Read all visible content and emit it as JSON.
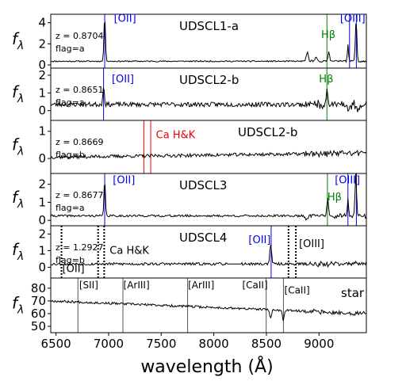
{
  "chart_data": {
    "type": "line",
    "xlabel": "wavelength (Å)",
    "ylabel": "fλ",
    "xlim": [
      6450,
      9450
    ],
    "x_ticks": [
      "6500",
      "7000",
      "7500",
      "8000",
      "8500",
      "9000"
    ],
    "panels": [
      {
        "id": "p1",
        "name": "UDSCL1-a",
        "z": "z = 0.8704",
        "flag": "flag=a",
        "ylim": [
          -0.3,
          4.8
        ],
        "yticks": [
          0,
          2,
          4
        ],
        "base": 0.35,
        "noise": 0.06,
        "seed": 11,
        "features": [
          [
            6963,
            4.3,
            10
          ],
          [
            8890,
            0.8,
            14
          ],
          [
            8970,
            0.5,
            12
          ],
          [
            9093,
            1.0,
            10
          ],
          [
            9275,
            1.6,
            8
          ],
          [
            9353,
            3.9,
            10
          ]
        ],
        "lines": [
          {
            "x": 6963,
            "color": "#0000ee",
            "style": "solid"
          },
          {
            "x": 9075,
            "color": "#008000",
            "style": "solid"
          },
          {
            "x": 9290,
            "color": "#0000ee",
            "style": "solid"
          },
          {
            "x": 9355,
            "color": "#0000ee",
            "style": "solid"
          }
        ],
        "labels": [
          {
            "text": "[OII]",
            "x": 7050,
            "y": 4.1,
            "color": "#0000ee"
          },
          {
            "text": "[OIII]",
            "x": 9200,
            "y": 4.1,
            "color": "#0000ee"
          },
          {
            "text": "Hβ",
            "x": 9020,
            "y": 2.55,
            "color": "#008000"
          }
        ]
      },
      {
        "id": "p2",
        "name": "UDSCL2-b",
        "z": "z = 0.8651",
        "flag": "flag=a",
        "ylim": [
          -0.55,
          2.4
        ],
        "yticks": [
          0,
          1,
          2
        ],
        "base": 0.35,
        "noise": 0.13,
        "seed": 23,
        "features": [
          [
            6952,
            1.1,
            10
          ],
          [
            9075,
            0.9,
            10
          ],
          [
            9280,
            -0.4,
            12
          ],
          [
            9380,
            -0.35,
            15
          ]
        ],
        "lines": [
          {
            "x": 6952,
            "color": "#0000ee",
            "style": "solid"
          },
          {
            "x": 9075,
            "color": "#008000",
            "style": "solid"
          }
        ],
        "labels": [
          {
            "text": "[OII]",
            "x": 7030,
            "y": 1.6,
            "color": "#0000ee"
          },
          {
            "text": "Hβ",
            "x": 9000,
            "y": 1.6,
            "color": "#008000"
          }
        ]
      },
      {
        "id": "p3",
        "name": "UDSCL2-b",
        "z": "z = 0.8669",
        "flag": "flag=b",
        "ylim": [
          -0.55,
          1.4
        ],
        "yticks": [
          0,
          1
        ],
        "base": 0.05,
        "noise": 0.06,
        "seed": 37,
        "slope": 0.15,
        "features": [],
        "lines": [
          {
            "x": 7335,
            "color": "#ee0000",
            "style": "solid"
          },
          {
            "x": 7400,
            "color": "#ee0000",
            "style": "solid"
          }
        ],
        "labels": [
          {
            "text": "Ca H&K",
            "x": 7450,
            "y": 0.75,
            "color": "#ee0000"
          }
        ]
      },
      {
        "id": "p4",
        "name": "UDSCL3",
        "z": "z = 0.8677",
        "flag": "flag=a",
        "ylim": [
          -0.3,
          2.6
        ],
        "yticks": [
          0,
          1,
          2
        ],
        "base": 0.25,
        "noise": 0.06,
        "seed": 41,
        "features": [
          [
            6963,
            2.1,
            9
          ],
          [
            8880,
            -0.2,
            12
          ],
          [
            9082,
            1.0,
            10
          ],
          [
            9275,
            1.0,
            8
          ],
          [
            9350,
            2.4,
            10
          ]
        ],
        "lines": [
          {
            "x": 6963,
            "color": "#0000ee",
            "style": "solid"
          },
          {
            "x": 9080,
            "color": "#008000",
            "style": "solid"
          },
          {
            "x": 9275,
            "color": "#0000ee",
            "style": "solid"
          },
          {
            "x": 9355,
            "color": "#0000ee",
            "style": "solid"
          }
        ],
        "labels": [
          {
            "text": "[OII]",
            "x": 7040,
            "y": 2.05,
            "color": "#0000ee"
          },
          {
            "text": "[OIII]",
            "x": 9150,
            "y": 2.05,
            "color": "#0000ee"
          },
          {
            "text": "Hβ",
            "x": 9080,
            "y": 1.1,
            "color": "#008000"
          }
        ]
      },
      {
        "id": "p5",
        "name": "UDSCL4",
        "z": "z = 1.2927",
        "flag": "flag=b",
        "ylim": [
          -0.65,
          2.5
        ],
        "yticks": [
          0,
          1,
          2
        ],
        "base": 0.2,
        "noise": 0.08,
        "seed": 53,
        "features": [
          [
            8540,
            1.2,
            12
          ]
        ],
        "gap": [
          8130,
          8260
        ],
        "lines": [
          {
            "x": 6552,
            "color": "#000000",
            "style": "dotted"
          },
          {
            "x": 6900,
            "color": "#000000",
            "style": "dotted"
          },
          {
            "x": 6958,
            "color": "#000000",
            "style": "dotted"
          },
          {
            "x": 8545,
            "color": "#0000ee",
            "style": "solid"
          },
          {
            "x": 8710,
            "color": "#000000",
            "style": "dotted"
          },
          {
            "x": 8780,
            "color": "#000000",
            "style": "dotted"
          }
        ],
        "labels": [
          {
            "text": "[OII]",
            "x": 6560,
            "y": -0.3,
            "color": "#000000"
          },
          {
            "text": "Ca H&K",
            "x": 7010,
            "y": 0.8,
            "color": "#000000"
          },
          {
            "text": "[OII]",
            "x": 8330,
            "y": 1.45,
            "color": "#0000ee"
          },
          {
            "text": "[OIII]",
            "x": 8810,
            "y": 1.2,
            "color": "#000000"
          }
        ]
      },
      {
        "id": "p6",
        "name": "star",
        "z": "",
        "flag": "",
        "ylim": [
          45,
          88
        ],
        "yticks": [
          50,
          60,
          70,
          80
        ],
        "base": 70,
        "noise": 0.9,
        "seed": 67,
        "slope": -10,
        "features": [
          [
            8540,
            -7,
            12
          ],
          [
            8660,
            -8,
            12
          ]
        ],
        "lines": [
          {
            "x": 6708,
            "color": "#555555",
            "style": "solid"
          },
          {
            "x": 7136,
            "color": "#555555",
            "style": "solid"
          },
          {
            "x": 7751,
            "color": "#555555",
            "style": "solid"
          },
          {
            "x": 8498,
            "color": "#555555",
            "style": "solid"
          },
          {
            "x": 8662,
            "color": "#555555",
            "style": "solid"
          }
        ],
        "labels": [
          {
            "text": "[SII]",
            "x": 6720,
            "y": 80,
            "color": "#000000"
          },
          {
            "text": "[ArIII]",
            "x": 7140,
            "y": 80,
            "color": "#000000"
          },
          {
            "text": "[ArIII]",
            "x": 7755,
            "y": 80,
            "color": "#000000"
          },
          {
            "text": "[CaII]",
            "x": 8270,
            "y": 80,
            "color": "#000000"
          },
          {
            "text": "[CaII]",
            "x": 8670,
            "y": 76,
            "color": "#000000"
          }
        ]
      }
    ]
  }
}
